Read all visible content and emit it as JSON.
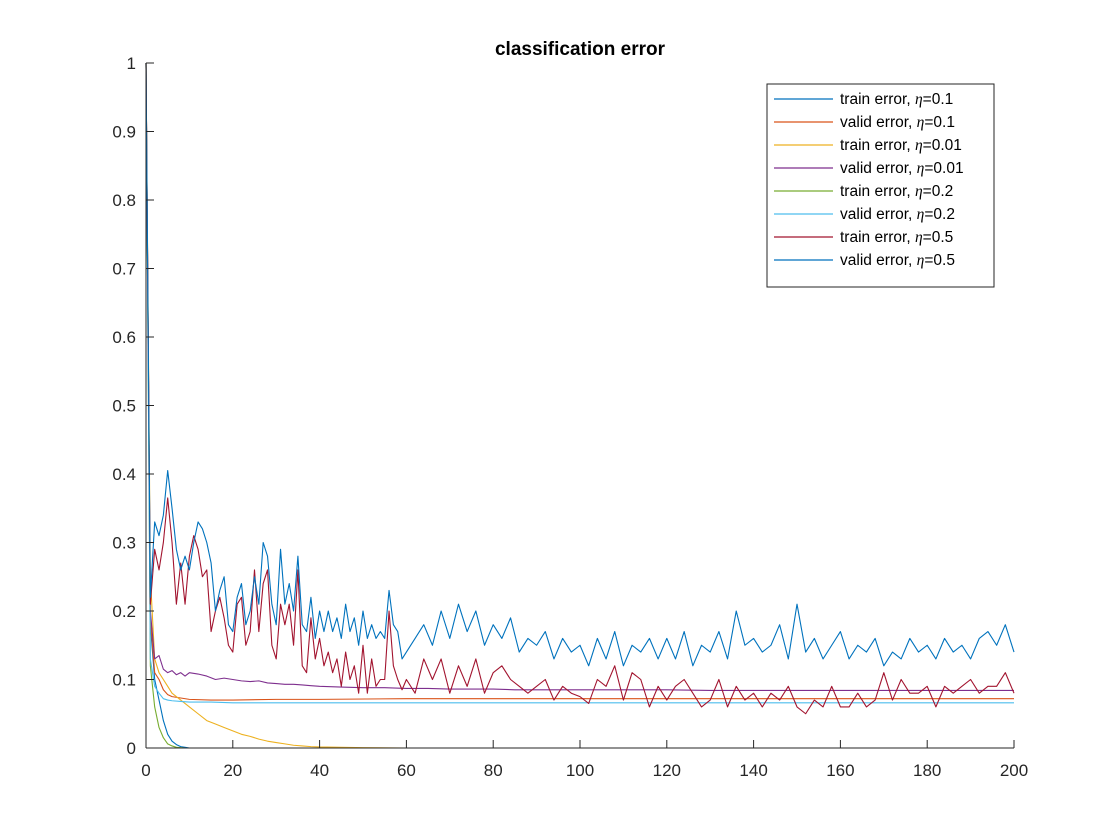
{
  "chart_data": {
    "type": "line",
    "title": "classification error",
    "xlabel": "",
    "ylabel": "",
    "xlim": [
      0,
      200
    ],
    "ylim": [
      0,
      1
    ],
    "xticks": [
      0,
      20,
      40,
      60,
      80,
      100,
      120,
      140,
      160,
      180,
      200
    ],
    "yticks": [
      0,
      0.1,
      0.2,
      0.3,
      0.4,
      0.5,
      0.6,
      0.7,
      0.8,
      0.9,
      1
    ],
    "grid": false,
    "legend_position": "top-right",
    "series": [
      {
        "name": "train error, η=0.1",
        "label_text": "train error, ",
        "eta_symbol": "η",
        "eta_value": "=0.1",
        "color": "#0072BD",
        "x": [
          0,
          1,
          2,
          3,
          4,
          5,
          6,
          7,
          8,
          9,
          10,
          12,
          14,
          16,
          18,
          20,
          25,
          30,
          40,
          60,
          80,
          100,
          150,
          200
        ],
        "y": [
          1,
          0.18,
          0.1,
          0.07,
          0.04,
          0.02,
          0.01,
          0.005,
          0.002,
          0.001,
          0,
          0,
          0,
          0,
          0,
          0,
          0,
          0,
          0,
          0,
          0,
          0,
          0,
          0
        ]
      },
      {
        "name": "valid error, η=0.1",
        "label_text": "valid error, ",
        "eta_symbol": "η",
        "eta_value": "=0.1",
        "color": "#D95319",
        "x": [
          0,
          1,
          2,
          3,
          4,
          5,
          6,
          8,
          10,
          15,
          20,
          30,
          40,
          60,
          80,
          100,
          120,
          140,
          160,
          180,
          200
        ],
        "y": [
          1,
          0.19,
          0.11,
          0.1,
          0.085,
          0.078,
          0.075,
          0.073,
          0.071,
          0.07,
          0.07,
          0.071,
          0.071,
          0.072,
          0.072,
          0.072,
          0.072,
          0.072,
          0.072,
          0.072,
          0.072
        ]
      },
      {
        "name": "train error, η=0.01",
        "label_text": "train error, ",
        "eta_symbol": "η",
        "eta_value": "=0.01",
        "color": "#EDB120",
        "x": [
          0,
          1,
          2,
          3,
          4,
          5,
          6,
          8,
          10,
          12,
          14,
          16,
          18,
          20,
          22,
          24,
          26,
          28,
          30,
          32,
          34,
          36,
          38,
          40,
          45,
          50,
          60,
          80,
          100,
          150,
          200
        ],
        "y": [
          1,
          0.25,
          0.13,
          0.11,
          0.1,
          0.09,
          0.08,
          0.07,
          0.06,
          0.05,
          0.04,
          0.035,
          0.03,
          0.025,
          0.02,
          0.017,
          0.013,
          0.01,
          0.008,
          0.006,
          0.004,
          0.003,
          0.002,
          0.0015,
          0.001,
          0.0005,
          0,
          0,
          0,
          0,
          0
        ]
      },
      {
        "name": "valid error, η=0.01",
        "label_text": "valid error, ",
        "eta_symbol": "η",
        "eta_value": "=0.01",
        "color": "#7E2F8E",
        "x": [
          0,
          1,
          2,
          3,
          4,
          5,
          6,
          7,
          8,
          9,
          10,
          12,
          14,
          16,
          18,
          20,
          22,
          24,
          26,
          28,
          30,
          32,
          34,
          36,
          38,
          40,
          45,
          50,
          55,
          60,
          65,
          70,
          75,
          80,
          85,
          90,
          95,
          100,
          110,
          120,
          130,
          140,
          150,
          160,
          170,
          180,
          190,
          200
        ],
        "y": [
          1,
          0.2,
          0.13,
          0.135,
          0.115,
          0.11,
          0.113,
          0.107,
          0.11,
          0.105,
          0.11,
          0.108,
          0.105,
          0.1,
          0.102,
          0.1,
          0.098,
          0.097,
          0.098,
          0.095,
          0.094,
          0.093,
          0.093,
          0.092,
          0.091,
          0.09,
          0.089,
          0.088,
          0.088,
          0.087,
          0.087,
          0.086,
          0.086,
          0.086,
          0.085,
          0.085,
          0.085,
          0.085,
          0.085,
          0.085,
          0.084,
          0.084,
          0.084,
          0.084,
          0.084,
          0.084,
          0.084,
          0.084
        ]
      },
      {
        "name": "train error, η=0.2",
        "label_text": "train error, ",
        "eta_symbol": "η",
        "eta_value": "=0.2",
        "color": "#77AC30",
        "x": [
          0,
          1,
          2,
          3,
          4,
          5,
          6,
          7,
          8,
          9,
          10,
          15,
          20,
          40,
          60,
          80,
          100,
          150,
          200
        ],
        "y": [
          1,
          0.12,
          0.06,
          0.03,
          0.015,
          0.006,
          0.003,
          0.001,
          0.0005,
          0,
          0,
          0,
          0,
          0,
          0,
          0,
          0,
          0,
          0
        ]
      },
      {
        "name": "valid error, η=0.2",
        "label_text": "valid error, ",
        "eta_symbol": "η",
        "eta_value": "=0.2",
        "color": "#4DBEEE",
        "x": [
          0,
          1,
          2,
          3,
          4,
          5,
          6,
          8,
          10,
          15,
          20,
          30,
          40,
          60,
          80,
          100,
          120,
          140,
          160,
          180,
          200
        ],
        "y": [
          1,
          0.13,
          0.09,
          0.08,
          0.072,
          0.07,
          0.069,
          0.068,
          0.067,
          0.067,
          0.066,
          0.066,
          0.066,
          0.066,
          0.066,
          0.066,
          0.066,
          0.066,
          0.066,
          0.066,
          0.066
        ]
      },
      {
        "name": "train error, η=0.5",
        "label_text": "train error, ",
        "eta_symbol": "η",
        "eta_value": "=0.5",
        "color": "#A2142F",
        "x": [
          0,
          1,
          2,
          3,
          4,
          5,
          6,
          7,
          8,
          9,
          10,
          11,
          12,
          13,
          14,
          15,
          16,
          17,
          18,
          19,
          20,
          21,
          22,
          23,
          24,
          25,
          26,
          27,
          28,
          29,
          30,
          31,
          32,
          33,
          34,
          35,
          36,
          37,
          38,
          39,
          40,
          41,
          42,
          43,
          44,
          45,
          46,
          47,
          48,
          49,
          50,
          51,
          52,
          53,
          54,
          55,
          56,
          57,
          58,
          59,
          60,
          62,
          64,
          66,
          68,
          70,
          72,
          74,
          76,
          78,
          80,
          82,
          84,
          86,
          88,
          90,
          92,
          94,
          96,
          98,
          100,
          102,
          104,
          106,
          108,
          110,
          112,
          114,
          116,
          118,
          120,
          122,
          124,
          126,
          128,
          130,
          132,
          134,
          136,
          138,
          140,
          142,
          144,
          146,
          148,
          150,
          152,
          154,
          156,
          158,
          160,
          162,
          164,
          166,
          168,
          170,
          172,
          174,
          176,
          178,
          180,
          182,
          184,
          186,
          188,
          190,
          192,
          194,
          196,
          198,
          200
        ],
        "y": [
          1,
          0.21,
          0.29,
          0.26,
          0.3,
          0.365,
          0.3,
          0.21,
          0.27,
          0.21,
          0.28,
          0.31,
          0.29,
          0.25,
          0.26,
          0.17,
          0.2,
          0.22,
          0.19,
          0.15,
          0.14,
          0.21,
          0.22,
          0.15,
          0.17,
          0.26,
          0.17,
          0.24,
          0.26,
          0.15,
          0.13,
          0.21,
          0.18,
          0.21,
          0.15,
          0.26,
          0.12,
          0.11,
          0.19,
          0.13,
          0.16,
          0.12,
          0.14,
          0.11,
          0.13,
          0.09,
          0.14,
          0.1,
          0.12,
          0.08,
          0.15,
          0.08,
          0.13,
          0.09,
          0.1,
          0.1,
          0.2,
          0.12,
          0.1,
          0.085,
          0.1,
          0.08,
          0.13,
          0.1,
          0.13,
          0.08,
          0.12,
          0.09,
          0.13,
          0.08,
          0.11,
          0.12,
          0.1,
          0.09,
          0.08,
          0.09,
          0.1,
          0.07,
          0.09,
          0.08,
          0.075,
          0.065,
          0.1,
          0.09,
          0.12,
          0.07,
          0.11,
          0.1,
          0.06,
          0.09,
          0.07,
          0.09,
          0.1,
          0.08,
          0.06,
          0.07,
          0.1,
          0.06,
          0.09,
          0.07,
          0.08,
          0.06,
          0.08,
          0.07,
          0.09,
          0.06,
          0.05,
          0.07,
          0.06,
          0.09,
          0.06,
          0.06,
          0.08,
          0.06,
          0.07,
          0.11,
          0.07,
          0.1,
          0.08,
          0.08,
          0.09,
          0.06,
          0.09,
          0.08,
          0.09,
          0.1,
          0.08,
          0.09,
          0.09,
          0.11,
          0.08
        ]
      },
      {
        "name": "valid error, η=0.5",
        "label_text": "valid error, ",
        "eta_symbol": "η",
        "eta_value": "=0.5",
        "color": "#0072BD",
        "x": [
          0,
          1,
          2,
          3,
          4,
          5,
          6,
          7,
          8,
          9,
          10,
          11,
          12,
          13,
          14,
          15,
          16,
          17,
          18,
          19,
          20,
          21,
          22,
          23,
          24,
          25,
          26,
          27,
          28,
          29,
          30,
          31,
          32,
          33,
          34,
          35,
          36,
          37,
          38,
          39,
          40,
          41,
          42,
          43,
          44,
          45,
          46,
          47,
          48,
          49,
          50,
          51,
          52,
          53,
          54,
          55,
          56,
          57,
          58,
          59,
          60,
          62,
          64,
          66,
          68,
          70,
          72,
          74,
          76,
          78,
          80,
          82,
          84,
          86,
          88,
          90,
          92,
          94,
          96,
          98,
          100,
          102,
          104,
          106,
          108,
          110,
          112,
          114,
          116,
          118,
          120,
          122,
          124,
          126,
          128,
          130,
          132,
          134,
          136,
          138,
          140,
          142,
          144,
          146,
          148,
          150,
          152,
          154,
          156,
          158,
          160,
          162,
          164,
          166,
          168,
          170,
          172,
          174,
          176,
          178,
          180,
          182,
          184,
          186,
          188,
          190,
          192,
          194,
          196,
          198,
          200
        ],
        "y": [
          1,
          0.22,
          0.33,
          0.31,
          0.34,
          0.405,
          0.35,
          0.29,
          0.26,
          0.28,
          0.26,
          0.3,
          0.33,
          0.32,
          0.3,
          0.27,
          0.2,
          0.23,
          0.25,
          0.18,
          0.17,
          0.22,
          0.24,
          0.18,
          0.2,
          0.25,
          0.21,
          0.3,
          0.28,
          0.21,
          0.18,
          0.29,
          0.21,
          0.24,
          0.2,
          0.28,
          0.18,
          0.17,
          0.22,
          0.16,
          0.2,
          0.17,
          0.2,
          0.17,
          0.19,
          0.16,
          0.21,
          0.17,
          0.19,
          0.15,
          0.2,
          0.16,
          0.18,
          0.16,
          0.17,
          0.16,
          0.23,
          0.18,
          0.17,
          0.13,
          0.14,
          0.16,
          0.18,
          0.15,
          0.2,
          0.16,
          0.21,
          0.17,
          0.2,
          0.15,
          0.18,
          0.16,
          0.19,
          0.14,
          0.16,
          0.15,
          0.17,
          0.13,
          0.16,
          0.14,
          0.15,
          0.12,
          0.16,
          0.13,
          0.17,
          0.12,
          0.15,
          0.14,
          0.16,
          0.13,
          0.16,
          0.13,
          0.17,
          0.12,
          0.15,
          0.14,
          0.17,
          0.13,
          0.2,
          0.15,
          0.16,
          0.14,
          0.15,
          0.18,
          0.13,
          0.21,
          0.14,
          0.16,
          0.13,
          0.15,
          0.17,
          0.13,
          0.15,
          0.14,
          0.16,
          0.12,
          0.14,
          0.13,
          0.16,
          0.14,
          0.15,
          0.13,
          0.16,
          0.14,
          0.15,
          0.13,
          0.16,
          0.17,
          0.15,
          0.18,
          0.14
        ]
      }
    ]
  }
}
